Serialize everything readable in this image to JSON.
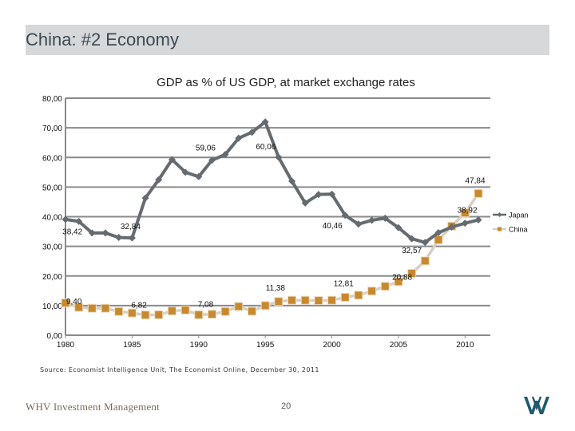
{
  "slide": {
    "title": "China: #2 Economy",
    "source": "Source: Economist Intelligence Unit, The Economist Online, December 30, 2011",
    "firm": "WHV Investment Management",
    "page_number": "20",
    "logo_icon": "whv-logo-icon"
  },
  "chart_data": {
    "type": "line",
    "title": "GDP as % of US GDP, at market exchange rates",
    "xlabel": "",
    "ylabel": "",
    "x": [
      1980,
      1981,
      1982,
      1983,
      1984,
      1985,
      1986,
      1987,
      1988,
      1989,
      1990,
      1991,
      1992,
      1993,
      1994,
      1995,
      1996,
      1997,
      1998,
      1999,
      2000,
      2001,
      2002,
      2003,
      2004,
      2005,
      2006,
      2007,
      2008,
      2009,
      2010,
      2011
    ],
    "xlim": [
      1980,
      2011
    ],
    "x_ticks": [
      1980,
      1985,
      1990,
      1995,
      2000,
      2005,
      2010
    ],
    "x_tick_labels": [
      "1980",
      "1985",
      "1990",
      "1995",
      "2000",
      "2005",
      "2010"
    ],
    "ylim": [
      0,
      80
    ],
    "y_ticks": [
      0,
      10,
      20,
      30,
      40,
      50,
      60,
      70,
      80
    ],
    "y_tick_labels": [
      "0,00",
      "10,00",
      "20,00",
      "30,00",
      "40,00",
      "50,00",
      "60,00",
      "70,00",
      "80,00"
    ],
    "grid": true,
    "legend_position": "right",
    "series": [
      {
        "name": "Japan",
        "color": "#656b70",
        "marker": "diamond",
        "values": [
          39.1,
          38.42,
          34.5,
          34.5,
          33.0,
          32.84,
          46.3,
          52.5,
          59.3,
          55.0,
          53.5,
          59.06,
          61.0,
          66.5,
          68.5,
          72.0,
          60.06,
          52.0,
          44.6,
          47.5,
          47.6,
          40.46,
          37.5,
          38.8,
          39.5,
          36.3,
          32.57,
          31.3,
          34.6,
          36.5,
          37.8,
          38.92
        ]
      },
      {
        "name": "China",
        "color": "#c8892e",
        "line_color": "#d8cfc2",
        "marker": "square",
        "values": [
          10.9,
          9.4,
          9.1,
          9.1,
          8.0,
          7.5,
          6.82,
          6.9,
          8.2,
          8.5,
          6.9,
          7.08,
          8.0,
          9.7,
          8.1,
          10.0,
          11.38,
          11.8,
          11.8,
          11.7,
          11.8,
          12.81,
          13.5,
          14.9,
          16.5,
          18.1,
          20.88,
          25.1,
          32.2,
          36.8,
          41.3,
          47.84
        ]
      }
    ],
    "annotations": [
      {
        "series": "Japan",
        "x": 1981,
        "text": "38,42"
      },
      {
        "series": "Japan",
        "x": 1985,
        "text": "32,84"
      },
      {
        "series": "Japan",
        "x": 1991,
        "text": "59,06"
      },
      {
        "series": "Japan",
        "x": 1996,
        "text": "60,06"
      },
      {
        "series": "Japan",
        "x": 2001,
        "text": "40,46"
      },
      {
        "series": "Japan",
        "x": 2006,
        "text": "32,57"
      },
      {
        "series": "Japan",
        "x": 2011,
        "text": "38,92"
      },
      {
        "series": "China",
        "x": 1981,
        "text": "9,40"
      },
      {
        "series": "China",
        "x": 1986,
        "text": "6,82"
      },
      {
        "series": "China",
        "x": 1991,
        "text": "7,08"
      },
      {
        "series": "China",
        "x": 1996,
        "text": "11,38"
      },
      {
        "series": "China",
        "x": 2001,
        "text": "12,81"
      },
      {
        "series": "China",
        "x": 2006,
        "text": "20,88"
      },
      {
        "series": "China",
        "x": 2011,
        "text": "47,84"
      }
    ]
  }
}
